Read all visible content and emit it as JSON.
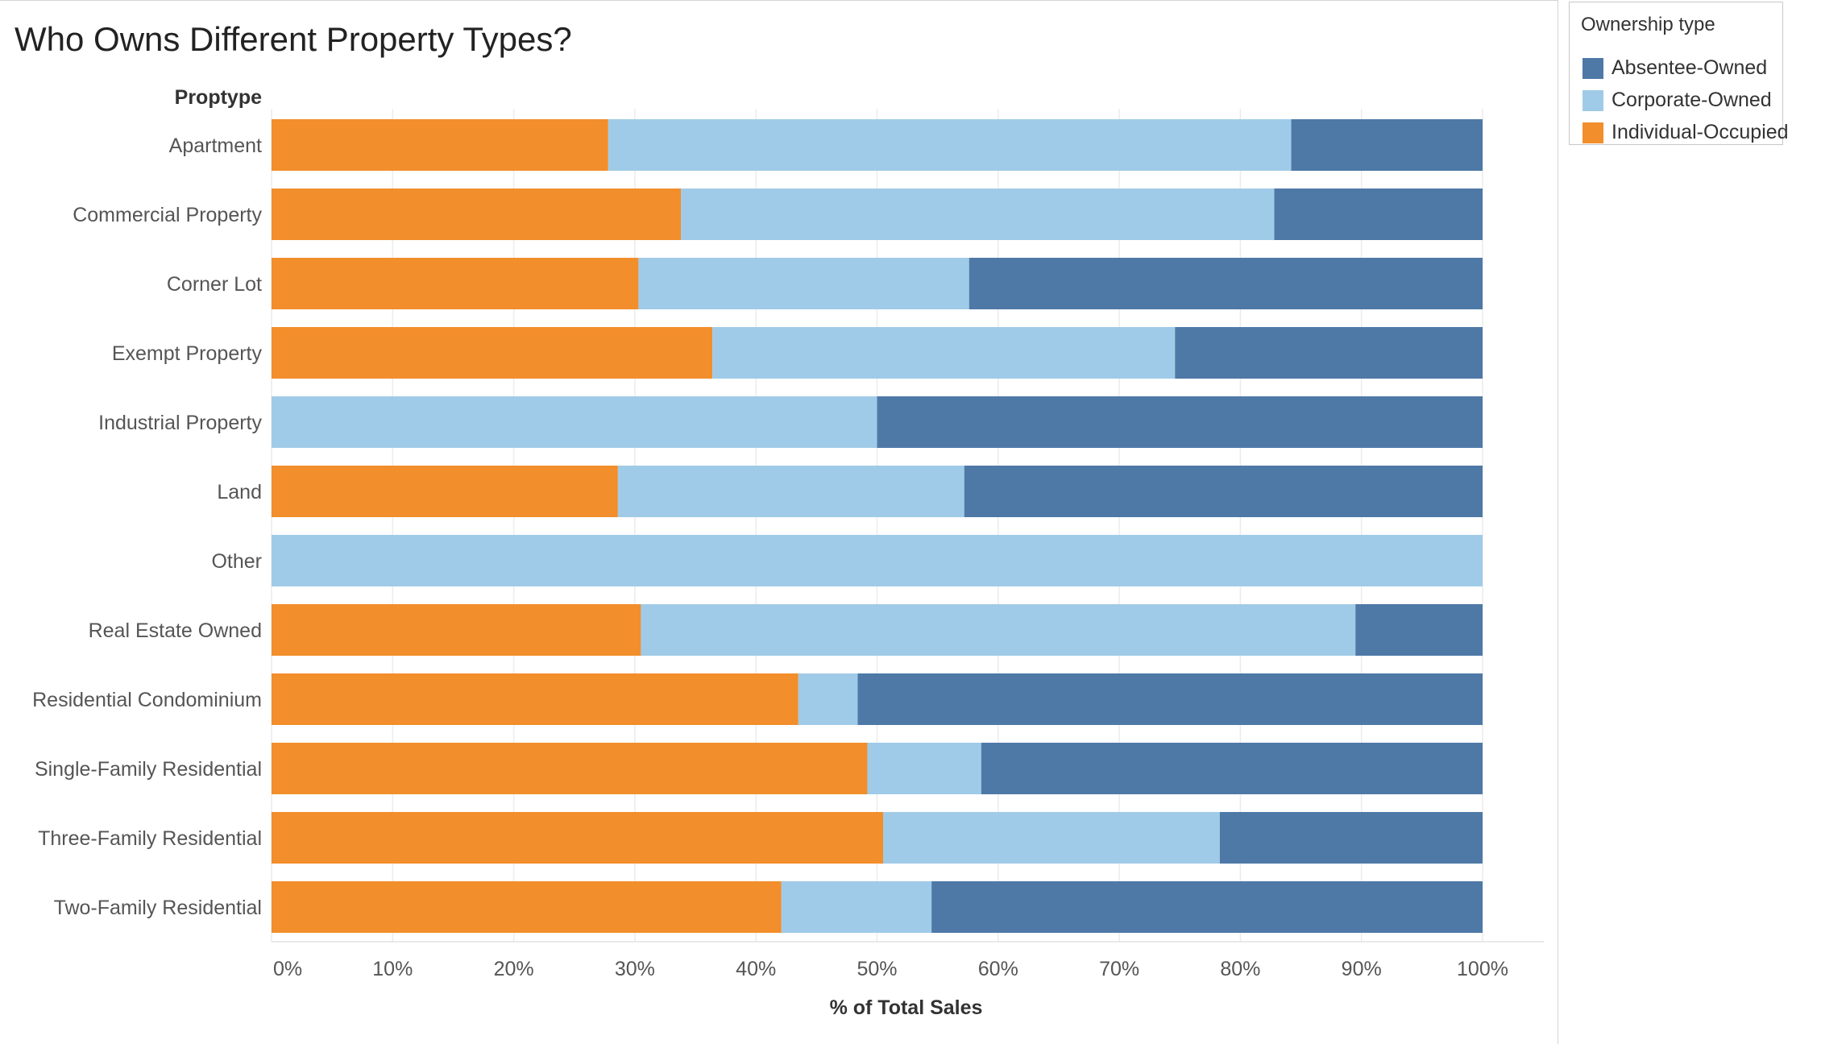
{
  "chart_data": {
    "type": "bar",
    "orientation": "horizontal",
    "stacked": "100%",
    "title": "Who Owns Different Property Types?",
    "row_header": "Proptype",
    "xlabel": "% of Total Sales",
    "xlim": [
      0,
      100
    ],
    "x_ticks": [
      "0%",
      "10%",
      "20%",
      "30%",
      "40%",
      "50%",
      "60%",
      "70%",
      "80%",
      "90%",
      "100%"
    ],
    "grid": true,
    "legend_position": "top-right",
    "categories": [
      "Apartment",
      "Commercial Property",
      "Corner Lot",
      "Exempt Property",
      "Industrial Property",
      "Land",
      "Other",
      "Real Estate Owned",
      "Residential Condominium",
      "Single-Family Residential",
      "Three-Family Residential",
      "Two-Family Residential"
    ],
    "series": [
      {
        "name": "Individual-Occupied",
        "color": "#f28e2b",
        "values": [
          27.8,
          33.8,
          30.3,
          36.4,
          0,
          28.6,
          0,
          30.5,
          43.5,
          49.2,
          50.5,
          42.1
        ]
      },
      {
        "name": "Corporate-Owned",
        "color": "#a0cbe8",
        "values": [
          56.4,
          49.0,
          27.3,
          38.2,
          50.0,
          28.6,
          100,
          59.0,
          4.9,
          9.4,
          27.8,
          12.4
        ]
      },
      {
        "name": "Absentee-Owned",
        "color": "#4e79a7",
        "values": [
          15.8,
          17.2,
          42.4,
          25.4,
          50.0,
          42.8,
          0,
          10.5,
          51.6,
          41.4,
          21.7,
          45.5
        ]
      }
    ]
  },
  "legend": {
    "title": "Ownership type",
    "items": [
      {
        "label": "Absentee-Owned",
        "color": "#4e79a7"
      },
      {
        "label": "Corporate-Owned",
        "color": "#a0cbe8"
      },
      {
        "label": "Individual-Occupied",
        "color": "#f28e2b"
      }
    ]
  }
}
